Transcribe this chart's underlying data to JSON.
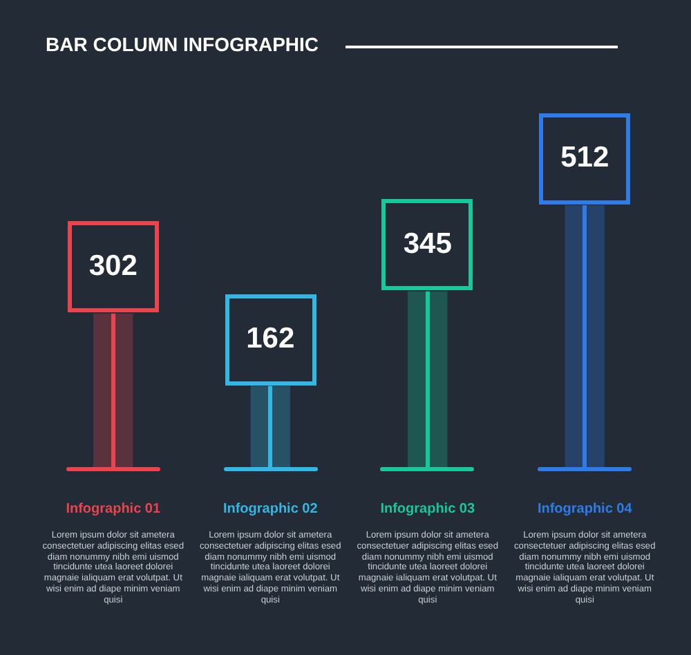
{
  "chart_data": {
    "type": "bar",
    "title": "BAR COLUMN INFOGRAPHIC",
    "categories": [
      "Infographic 01",
      "Infographic 02",
      "Infographic 03",
      "Infographic 04"
    ],
    "values": [
      302,
      162,
      345,
      512
    ],
    "colors": [
      "#e8454f",
      "#35b6e3",
      "#1cc69c",
      "#2f7ce8"
    ],
    "data_labels": true,
    "annotations": [
      "Lorem ipsum dolor sit ametera consectetuer adipiscing elitas esed diam nonummy nibh emi uismod tincidunte utea laoreet dolorei magnaie ialiquam erat volutpat. Ut wisi enim ad diape minim veniam quisi",
      "Lorem ipsum dolor sit ametera consectetuer adipiscing elitas esed diam nonummy nibh emi uismod tincidunte utea laoreet dolorei magnaie ialiquam erat volutpat. Ut wisi enim ad diape minim veniam quisi",
      "Lorem ipsum dolor sit ametera consectetuer adipiscing elitas esed diam nonummy nibh emi uismod tincidunte utea laoreet dolorei magnaie ialiquam erat volutpat. Ut wisi enim ad diape minim veniam quisi",
      "Lorem ipsum dolor sit ametera consectetuer adipiscing elitas esed diam nonummy nibh emi uismod tincidunte utea laoreet dolorei magnaie ialiquam erat volutpat. Ut wisi enim ad diape minim veniam quisi"
    ]
  }
}
